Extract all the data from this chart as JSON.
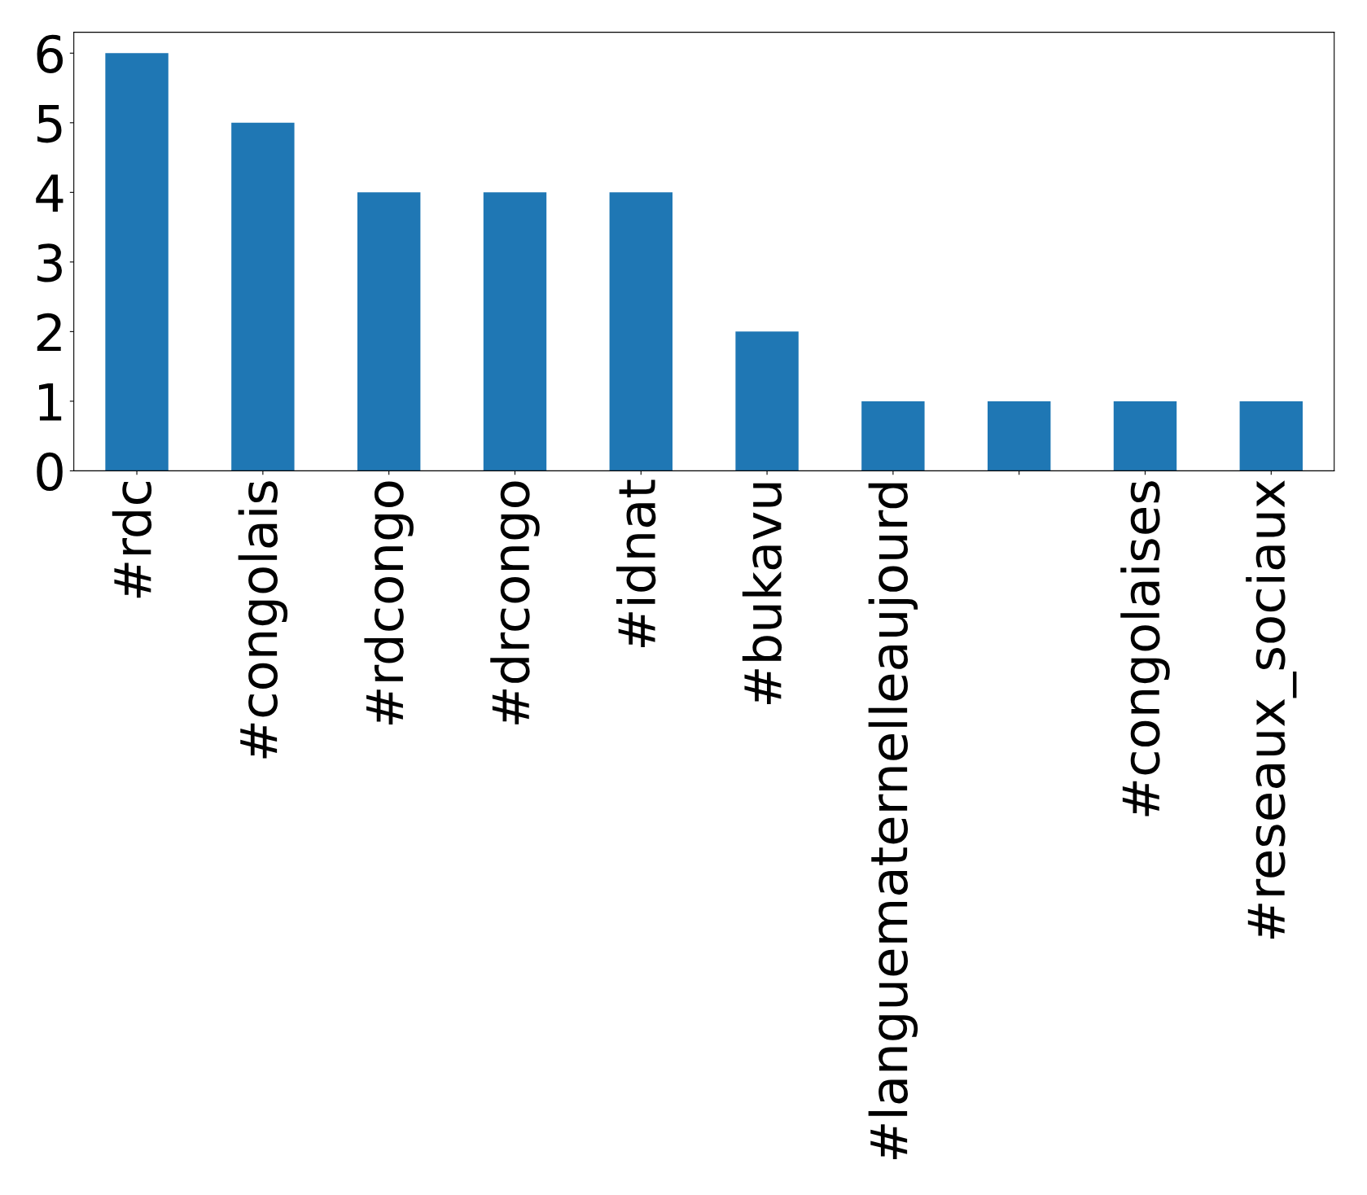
{
  "chart_data": {
    "type": "bar",
    "categories": [
      "#rdc",
      "#congolais",
      "#rdcongo",
      "#drcongo",
      "#idnat",
      "#bukavu",
      "#languematernelleaujourd",
      null,
      "#congolaises",
      "#reseaux_sociaux"
    ],
    "values": [
      6,
      5,
      4,
      4,
      4,
      2,
      1,
      1,
      1,
      1
    ],
    "color": "#1f77b4",
    "ylim": [
      0,
      6.3
    ],
    "yticks": [
      0,
      1,
      2,
      3,
      4,
      5,
      6
    ],
    "grid": false,
    "legend": false
  }
}
